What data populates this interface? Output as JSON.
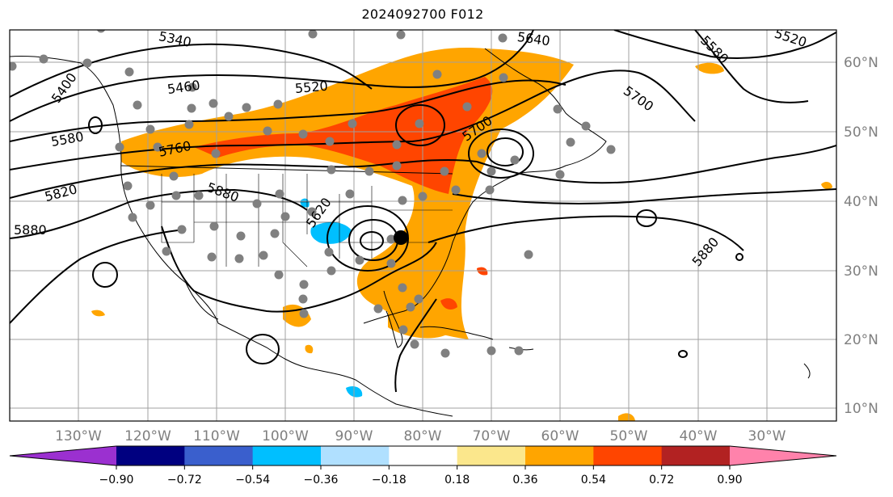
{
  "title": "2024092700 F012",
  "map": {
    "lat_ticks": [
      "60°N",
      "50°N",
      "40°N",
      "30°N",
      "20°N",
      "10°N"
    ],
    "lon_ticks": [
      "130°W",
      "120°W",
      "110°W",
      "100°W",
      "90°W",
      "80°W",
      "70°W",
      "60°W",
      "50°W",
      "40°W",
      "30°W"
    ],
    "contour_labels": [
      "5340",
      "5640",
      "5580",
      "5520",
      "5400",
      "5460",
      "5520",
      "5700",
      "5580",
      "5760",
      "5820",
      "5880",
      "5880",
      "5620",
      "5700",
      "5880"
    ]
  },
  "colorbar": {
    "tick_labels": [
      "−0.90",
      "−0.72",
      "−0.54",
      "−0.36",
      "−0.18",
      "0.18",
      "0.36",
      "0.54",
      "0.72",
      "0.90"
    ],
    "colors": [
      "#9b30d0",
      "#000080",
      "#3a5fcd",
      "#00bfff",
      "#b0e0ff",
      "#ffffff",
      "#fbe78c",
      "#ffa500",
      "#ff4500",
      "#b22222",
      "#ff82ab"
    ]
  }
}
